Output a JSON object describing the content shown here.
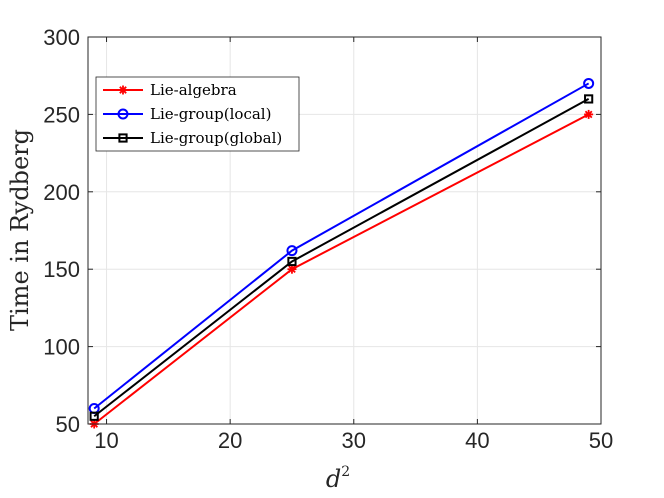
{
  "chart_data": {
    "type": "line",
    "xlabel": "d",
    "xlabel_superscript": "2",
    "ylabel": "Time in Rydberg",
    "xlim": [
      8.5,
      50
    ],
    "ylim": [
      50,
      300
    ],
    "xticks": [
      10,
      20,
      30,
      40,
      50
    ],
    "yticks": [
      50,
      100,
      150,
      200,
      250,
      300
    ],
    "grid": true,
    "legend_position": "top-left",
    "x": [
      9,
      25,
      49
    ],
    "series": [
      {
        "name": "Lie-algebra",
        "values": [
          50,
          150,
          250
        ],
        "color": "#ff0000",
        "marker": "asterisk"
      },
      {
        "name": "Lie-group(local)",
        "values": [
          60,
          162,
          270
        ],
        "color": "#0000ff",
        "marker": "circle"
      },
      {
        "name": "Lie-group(global)",
        "values": [
          55,
          155,
          260
        ],
        "color": "#000000",
        "marker": "square"
      }
    ]
  }
}
